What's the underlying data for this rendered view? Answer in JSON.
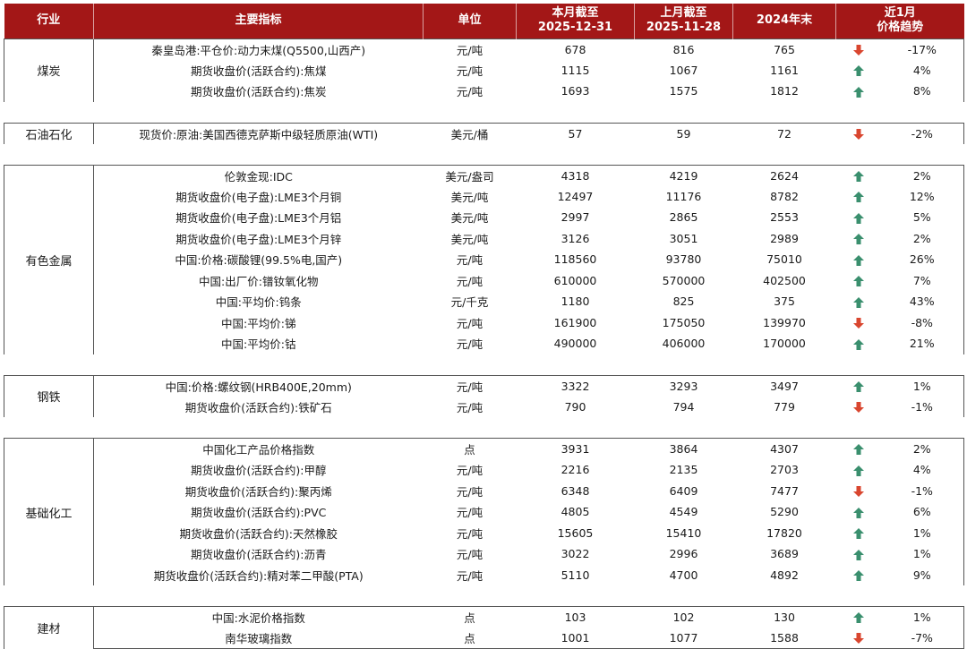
{
  "colors": {
    "header_bg": "#a31717",
    "up_arrow": "#3a8f6e",
    "down_arrow": "#d9462f"
  },
  "header": {
    "industry": "行业",
    "indicator": "主要指标",
    "unit": "单位",
    "current": [
      "本月截至",
      "2025-12-31"
    ],
    "previous": [
      "上月截至",
      "2025-11-28"
    ],
    "year_end": "2024年末",
    "trend": [
      "近1月",
      "价格趋势"
    ]
  },
  "groups": [
    {
      "industry": "煤炭",
      "rows": [
        {
          "indicator": "秦皇岛港:平仓价:动力末煤(Q5500,山西产)",
          "unit": "元/吨",
          "current": "678",
          "previous": "816",
          "year_end": "765",
          "direction": "down",
          "change": "-17%"
        },
        {
          "indicator": "期货收盘价(活跃合约):焦煤",
          "unit": "元/吨",
          "current": "1115",
          "previous": "1067",
          "year_end": "1161",
          "direction": "up",
          "change": "4%"
        },
        {
          "indicator": "期货收盘价(活跃合约):焦炭",
          "unit": "元/吨",
          "current": "1693",
          "previous": "1575",
          "year_end": "1812",
          "direction": "up",
          "change": "8%"
        }
      ]
    },
    {
      "industry": "石油石化",
      "rows": [
        {
          "indicator": "现货价:原油:美国西德克萨斯中级轻质原油(WTI)",
          "unit": "美元/桶",
          "current": "57",
          "previous": "59",
          "year_end": "72",
          "direction": "down",
          "change": "-2%"
        }
      ]
    },
    {
      "industry": "有色金属",
      "rows": [
        {
          "indicator": "伦敦金现:IDC",
          "unit": "美元/盎司",
          "current": "4318",
          "previous": "4219",
          "year_end": "2624",
          "direction": "up",
          "change": "2%"
        },
        {
          "indicator": "期货收盘价(电子盘):LME3个月铜",
          "unit": "美元/吨",
          "current": "12497",
          "previous": "11176",
          "year_end": "8782",
          "direction": "up",
          "change": "12%"
        },
        {
          "indicator": "期货收盘价(电子盘):LME3个月铝",
          "unit": "美元/吨",
          "current": "2997",
          "previous": "2865",
          "year_end": "2553",
          "direction": "up",
          "change": "5%"
        },
        {
          "indicator": "期货收盘价(电子盘):LME3个月锌",
          "unit": "美元/吨",
          "current": "3126",
          "previous": "3051",
          "year_end": "2989",
          "direction": "up",
          "change": "2%"
        },
        {
          "indicator": "中国:价格:碳酸锂(99.5%电,国产)",
          "unit": "元/吨",
          "current": "118560",
          "previous": "93780",
          "year_end": "75010",
          "direction": "up",
          "change": "26%"
        },
        {
          "indicator": "中国:出厂价:镨钕氧化物",
          "unit": "元/吨",
          "current": "610000",
          "previous": "570000",
          "year_end": "402500",
          "direction": "up",
          "change": "7%"
        },
        {
          "indicator": "中国:平均价:钨条",
          "unit": "元/千克",
          "current": "1180",
          "previous": "825",
          "year_end": "375",
          "direction": "up",
          "change": "43%"
        },
        {
          "indicator": "中国:平均价:锑",
          "unit": "元/吨",
          "current": "161900",
          "previous": "175050",
          "year_end": "139970",
          "direction": "down",
          "change": "-8%"
        },
        {
          "indicator": "中国:平均价:钴",
          "unit": "元/吨",
          "current": "490000",
          "previous": "406000",
          "year_end": "170000",
          "direction": "up",
          "change": "21%"
        }
      ]
    },
    {
      "industry": "钢铁",
      "rows": [
        {
          "indicator": "中国:价格:螺纹钢(HRB400E,20mm)",
          "unit": "元/吨",
          "current": "3322",
          "previous": "3293",
          "year_end": "3497",
          "direction": "up",
          "change": "1%"
        },
        {
          "indicator": "期货收盘价(活跃合约):铁矿石",
          "unit": "元/吨",
          "current": "790",
          "previous": "794",
          "year_end": "779",
          "direction": "down",
          "change": "-1%"
        }
      ]
    },
    {
      "industry": "基础化工",
      "rows": [
        {
          "indicator": "中国化工产品价格指数",
          "unit": "点",
          "current": "3931",
          "previous": "3864",
          "year_end": "4307",
          "direction": "up",
          "change": "2%"
        },
        {
          "indicator": "期货收盘价(活跃合约):甲醇",
          "unit": "元/吨",
          "current": "2216",
          "previous": "2135",
          "year_end": "2703",
          "direction": "up",
          "change": "4%"
        },
        {
          "indicator": "期货收盘价(活跃合约):聚丙烯",
          "unit": "元/吨",
          "current": "6348",
          "previous": "6409",
          "year_end": "7477",
          "direction": "down",
          "change": "-1%"
        },
        {
          "indicator": "期货收盘价(活跃合约):PVC",
          "unit": "元/吨",
          "current": "4805",
          "previous": "4549",
          "year_end": "5290",
          "direction": "up",
          "change": "6%"
        },
        {
          "indicator": "期货收盘价(活跃合约):天然橡胶",
          "unit": "元/吨",
          "current": "15605",
          "previous": "15410",
          "year_end": "17820",
          "direction": "up",
          "change": "1%"
        },
        {
          "indicator": "期货收盘价(活跃合约):沥青",
          "unit": "元/吨",
          "current": "3022",
          "previous": "2996",
          "year_end": "3689",
          "direction": "up",
          "change": "1%"
        },
        {
          "indicator": "期货收盘价(活跃合约):精对苯二甲酸(PTA)",
          "unit": "元/吨",
          "current": "5110",
          "previous": "4700",
          "year_end": "4892",
          "direction": "up",
          "change": "9%"
        }
      ]
    },
    {
      "industry": "建材",
      "rows": [
        {
          "indicator": "中国:水泥价格指数",
          "unit": "点",
          "current": "103",
          "previous": "102",
          "year_end": "130",
          "direction": "up",
          "change": "1%"
        },
        {
          "indicator": "南华玻璃指数",
          "unit": "点",
          "current": "1001",
          "previous": "1077",
          "year_end": "1588",
          "direction": "down",
          "change": "-7%"
        }
      ]
    }
  ]
}
